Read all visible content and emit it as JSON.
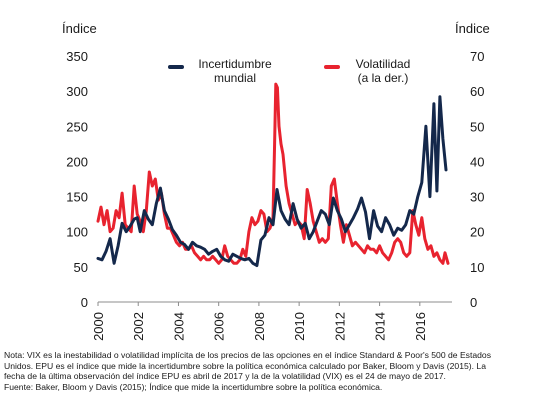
{
  "chart_data": {
    "type": "line",
    "left_axis_title": "Índice",
    "right_axis_title": "Índice",
    "y_left_lim": [
      0,
      350
    ],
    "y_left_ticks": [
      "0",
      "50",
      "100",
      "150",
      "200",
      "250",
      "300",
      "350"
    ],
    "y_right_lim": [
      0,
      70
    ],
    "y_right_ticks": [
      "0",
      "10",
      "20",
      "30",
      "40",
      "50",
      "60",
      "70"
    ],
    "x_lim": [
      2000,
      2017.6
    ],
    "x_ticks": [
      "2000",
      "2002",
      "2004",
      "2006",
      "2008",
      "2010",
      "2012",
      "2014",
      "2016"
    ],
    "grid": false,
    "legend_placement": "top-center",
    "series": [
      {
        "name": "Incertidumbre mundial",
        "axis": "left",
        "color": "#14284b",
        "points": [
          [
            2000.0,
            62
          ],
          [
            2000.2,
            60
          ],
          [
            2000.4,
            72
          ],
          [
            2000.6,
            90
          ],
          [
            2000.8,
            55
          ],
          [
            2001.0,
            80
          ],
          [
            2001.2,
            112
          ],
          [
            2001.4,
            100
          ],
          [
            2001.6,
            108
          ],
          [
            2001.8,
            118
          ],
          [
            2001.95,
            120
          ],
          [
            2002.1,
            100
          ],
          [
            2002.3,
            130
          ],
          [
            2002.5,
            118
          ],
          [
            2002.7,
            110
          ],
          [
            2002.9,
            140
          ],
          [
            2003.1,
            162
          ],
          [
            2003.3,
            130
          ],
          [
            2003.5,
            118
          ],
          [
            2003.7,
            103
          ],
          [
            2003.9,
            95
          ],
          [
            2004.1,
            85
          ],
          [
            2004.3,
            82
          ],
          [
            2004.5,
            75
          ],
          [
            2004.7,
            85
          ],
          [
            2004.9,
            80
          ],
          [
            2005.1,
            78
          ],
          [
            2005.3,
            75
          ],
          [
            2005.5,
            68
          ],
          [
            2005.7,
            72
          ],
          [
            2005.9,
            75
          ],
          [
            2006.1,
            65
          ],
          [
            2006.3,
            60
          ],
          [
            2006.5,
            58
          ],
          [
            2006.7,
            68
          ],
          [
            2006.9,
            65
          ],
          [
            2007.1,
            62
          ],
          [
            2007.3,
            60
          ],
          [
            2007.5,
            62
          ],
          [
            2007.7,
            55
          ],
          [
            2007.9,
            52
          ],
          [
            2008.1,
            88
          ],
          [
            2008.3,
            95
          ],
          [
            2008.5,
            120
          ],
          [
            2008.7,
            110
          ],
          [
            2008.9,
            160
          ],
          [
            2009.1,
            130
          ],
          [
            2009.3,
            118
          ],
          [
            2009.5,
            110
          ],
          [
            2009.7,
            140
          ],
          [
            2009.9,
            118
          ],
          [
            2010.1,
            105
          ],
          [
            2010.3,
            112
          ],
          [
            2010.5,
            90
          ],
          [
            2010.7,
            100
          ],
          [
            2010.9,
            115
          ],
          [
            2011.1,
            130
          ],
          [
            2011.3,
            125
          ],
          [
            2011.5,
            110
          ],
          [
            2011.7,
            148
          ],
          [
            2011.9,
            130
          ],
          [
            2012.1,
            118
          ],
          [
            2012.3,
            100
          ],
          [
            2012.5,
            110
          ],
          [
            2012.7,
            120
          ],
          [
            2012.9,
            132
          ],
          [
            2013.1,
            148
          ],
          [
            2013.3,
            128
          ],
          [
            2013.5,
            90
          ],
          [
            2013.7,
            130
          ],
          [
            2013.9,
            108
          ],
          [
            2014.1,
            100
          ],
          [
            2014.3,
            120
          ],
          [
            2014.5,
            110
          ],
          [
            2014.7,
            95
          ],
          [
            2014.9,
            105
          ],
          [
            2015.1,
            102
          ],
          [
            2015.3,
            110
          ],
          [
            2015.5,
            130
          ],
          [
            2015.7,
            125
          ],
          [
            2015.9,
            150
          ],
          [
            2016.1,
            170
          ],
          [
            2016.3,
            250
          ],
          [
            2016.5,
            150
          ],
          [
            2016.7,
            282
          ],
          [
            2016.85,
            158
          ],
          [
            2017.0,
            292
          ],
          [
            2017.15,
            232
          ],
          [
            2017.3,
            188
          ]
        ]
      },
      {
        "name": "Volatilidad (a la der.)",
        "axis": "right",
        "color": "#e8232f",
        "points": [
          [
            2000.0,
            23
          ],
          [
            2000.15,
            27
          ],
          [
            2000.3,
            22
          ],
          [
            2000.45,
            26
          ],
          [
            2000.6,
            20
          ],
          [
            2000.75,
            21
          ],
          [
            2000.9,
            26
          ],
          [
            2001.05,
            24
          ],
          [
            2001.2,
            31
          ],
          [
            2001.35,
            22
          ],
          [
            2001.5,
            21
          ],
          [
            2001.65,
            20
          ],
          [
            2001.8,
            33
          ],
          [
            2001.95,
            25
          ],
          [
            2002.1,
            23
          ],
          [
            2002.25,
            20
          ],
          [
            2002.4,
            26
          ],
          [
            2002.55,
            37
          ],
          [
            2002.7,
            33
          ],
          [
            2002.85,
            35
          ],
          [
            2003.0,
            29
          ],
          [
            2003.15,
            31
          ],
          [
            2003.3,
            25
          ],
          [
            2003.45,
            21
          ],
          [
            2003.6,
            21
          ],
          [
            2003.75,
            19
          ],
          [
            2003.9,
            17
          ],
          [
            2004.05,
            16
          ],
          [
            2004.2,
            17
          ],
          [
            2004.35,
            15
          ],
          [
            2004.5,
            15
          ],
          [
            2004.65,
            16
          ],
          [
            2004.8,
            14
          ],
          [
            2004.95,
            13
          ],
          [
            2005.1,
            12
          ],
          [
            2005.25,
            13
          ],
          [
            2005.4,
            12
          ],
          [
            2005.55,
            12
          ],
          [
            2005.7,
            13
          ],
          [
            2005.85,
            12
          ],
          [
            2006.0,
            11
          ],
          [
            2006.15,
            12
          ],
          [
            2006.3,
            16
          ],
          [
            2006.45,
            13
          ],
          [
            2006.6,
            12
          ],
          [
            2006.75,
            11
          ],
          [
            2006.9,
            11
          ],
          [
            2007.05,
            12
          ],
          [
            2007.2,
            15
          ],
          [
            2007.35,
            13
          ],
          [
            2007.5,
            20
          ],
          [
            2007.65,
            24
          ],
          [
            2007.8,
            22
          ],
          [
            2007.95,
            23
          ],
          [
            2008.1,
            26
          ],
          [
            2008.25,
            25
          ],
          [
            2008.4,
            20
          ],
          [
            2008.55,
            21
          ],
          [
            2008.7,
            24
          ],
          [
            2008.78,
            45
          ],
          [
            2008.84,
            62
          ],
          [
            2008.92,
            61
          ],
          [
            2009.0,
            50
          ],
          [
            2009.1,
            45
          ],
          [
            2009.2,
            42
          ],
          [
            2009.35,
            33
          ],
          [
            2009.5,
            28
          ],
          [
            2009.65,
            25
          ],
          [
            2009.8,
            22
          ],
          [
            2009.95,
            23
          ],
          [
            2010.1,
            22
          ],
          [
            2010.25,
            18
          ],
          [
            2010.4,
            32
          ],
          [
            2010.55,
            28
          ],
          [
            2010.7,
            23
          ],
          [
            2010.85,
            20
          ],
          [
            2011.0,
            17
          ],
          [
            2011.15,
            18
          ],
          [
            2011.3,
            17
          ],
          [
            2011.45,
            18
          ],
          [
            2011.6,
            33
          ],
          [
            2011.75,
            35
          ],
          [
            2011.9,
            28
          ],
          [
            2012.05,
            22
          ],
          [
            2012.2,
            17
          ],
          [
            2012.35,
            22
          ],
          [
            2012.5,
            19
          ],
          [
            2012.65,
            16
          ],
          [
            2012.8,
            17
          ],
          [
            2012.95,
            16
          ],
          [
            2013.1,
            15
          ],
          [
            2013.25,
            14
          ],
          [
            2013.4,
            16
          ],
          [
            2013.55,
            15
          ],
          [
            2013.7,
            15
          ],
          [
            2013.85,
            14
          ],
          [
            2014.0,
            16
          ],
          [
            2014.15,
            14
          ],
          [
            2014.3,
            13
          ],
          [
            2014.45,
            12
          ],
          [
            2014.6,
            14
          ],
          [
            2014.75,
            17
          ],
          [
            2014.9,
            18
          ],
          [
            2015.05,
            17
          ],
          [
            2015.2,
            14
          ],
          [
            2015.35,
            13
          ],
          [
            2015.5,
            14
          ],
          [
            2015.65,
            26
          ],
          [
            2015.8,
            22
          ],
          [
            2015.95,
            19
          ],
          [
            2016.1,
            24
          ],
          [
            2016.25,
            18
          ],
          [
            2016.4,
            15
          ],
          [
            2016.55,
            16
          ],
          [
            2016.7,
            13
          ],
          [
            2016.85,
            14
          ],
          [
            2017.0,
            12
          ],
          [
            2017.15,
            11
          ],
          [
            2017.25,
            14
          ],
          [
            2017.4,
            11
          ]
        ]
      }
    ],
    "legend": {
      "epu_line1": "Incertidumbre",
      "epu_line2": "mundial",
      "vix_line1": "Volatilidad",
      "vix_line2": "(a la der.)"
    }
  },
  "notes": [
    "Nota: VIX es la inestabilidad o volatilidad implícita de los precios de las opciones en el índice Standard & Poor's 500 de Estados",
    "Unidos. EPU es el índice que mide la incertidumbre sobre la política económica calculado por Baker, Bloom y Davis (2015). La",
    "fecha de la última observación del índice EPU es abril de 2017 y la de la volatilidad (VIX) es el 24 de mayo de 2017.",
    "Fuente: Baker, Bloom y Davis (2015); Índice que mide la incertidumbre sobre la política económica."
  ]
}
